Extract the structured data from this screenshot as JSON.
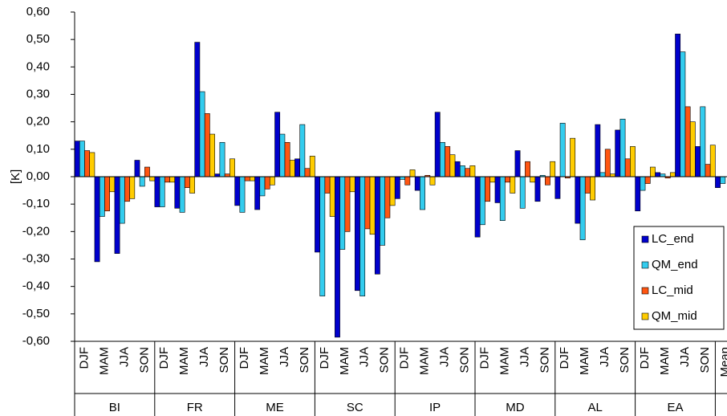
{
  "chart_data": {
    "type": "bar",
    "y_label": "[K]",
    "categories": [
      "DJF",
      "MAM",
      "JJA",
      "SON",
      "DJF",
      "MAM",
      "JJA",
      "SON",
      "DJF",
      "MAM",
      "JJA",
      "SON",
      "DJF",
      "MAM",
      "JJA",
      "SON",
      "DJF",
      "MAM",
      "JJA",
      "SON",
      "DJF",
      "MAM",
      "JJA",
      "SON",
      "DJF",
      "MAM",
      "JJA",
      "SON",
      "DJF",
      "MAM",
      "JJA",
      "SON",
      "Mean"
    ],
    "group_labels": [
      "BI",
      "FR",
      "ME",
      "SC",
      "IP",
      "MD",
      "AL",
      "EA"
    ],
    "series": [
      {
        "name": "LC_end",
        "color": "#0000cc",
        "values": [
          0.13,
          -0.31,
          -0.28,
          0.06,
          -0.11,
          -0.115,
          0.49,
          0.01,
          -0.105,
          -0.12,
          0.235,
          0.065,
          -0.275,
          -0.585,
          -0.415,
          -0.355,
          -0.08,
          -0.05,
          0.235,
          0.055,
          -0.22,
          -0.095,
          0.095,
          -0.09,
          -0.08,
          -0.17,
          0.19,
          0.17,
          -0.125,
          0.015,
          0.52,
          0.11,
          -0.04
        ]
      },
      {
        "name": "QM_end",
        "color": "#33ccee",
        "values": [
          0.13,
          -0.145,
          -0.17,
          -0.035,
          -0.11,
          -0.13,
          0.31,
          0.125,
          -0.13,
          -0.07,
          0.155,
          0.19,
          -0.435,
          -0.265,
          -0.435,
          -0.25,
          -0.01,
          -0.12,
          0.125,
          0.04,
          -0.175,
          -0.16,
          -0.115,
          0.005,
          0.195,
          -0.23,
          0.015,
          0.21,
          -0.05,
          0.01,
          0.455,
          0.255,
          -0.025
        ]
      },
      {
        "name": "LC_mid",
        "color": "#ff5511",
        "values": [
          0.095,
          -0.125,
          -0.09,
          0.035,
          -0.02,
          -0.04,
          0.23,
          0.01,
          -0.015,
          -0.045,
          0.125,
          0.03,
          -0.06,
          -0.2,
          -0.19,
          -0.15,
          -0.03,
          0.005,
          0.11,
          0.03,
          -0.09,
          -0.02,
          0.055,
          -0.03,
          -0.005,
          -0.06,
          0.1,
          0.065,
          -0.025,
          -0.005,
          0.255,
          0.045,
          null
        ]
      },
      {
        "name": "QM_mid",
        "color": "#ffcc00",
        "values": [
          0.088,
          -0.055,
          -0.08,
          -0.015,
          -0.02,
          -0.06,
          0.155,
          0.065,
          -0.015,
          -0.03,
          0.06,
          0.075,
          -0.145,
          -0.055,
          -0.21,
          -0.105,
          0.025,
          -0.03,
          0.08,
          0.04,
          -0.02,
          -0.06,
          -0.02,
          0.055,
          0.14,
          -0.085,
          0.01,
          0.11,
          0.035,
          0.015,
          0.2,
          0.115,
          null
        ]
      }
    ],
    "ylim": [
      -0.6,
      0.6
    ],
    "yticks": [
      {
        "value": 0.6,
        "label": "0,60"
      },
      {
        "value": 0.5,
        "label": "0,50"
      },
      {
        "value": 0.4,
        "label": "0,40"
      },
      {
        "value": 0.3,
        "label": "0,30"
      },
      {
        "value": 0.2,
        "label": "0,20"
      },
      {
        "value": 0.1,
        "label": "0,10"
      },
      {
        "value": 0,
        "label": "0,00"
      },
      {
        "value": -0.1,
        "label": "-0,10"
      },
      {
        "value": -0.2,
        "label": "-0,20"
      },
      {
        "value": -0.3,
        "label": "-0,30"
      },
      {
        "value": -0.4,
        "label": "-0,40"
      },
      {
        "value": -0.5,
        "label": "-0,50"
      },
      {
        "value": -0.6,
        "label": "-0,60"
      }
    ],
    "legend": "right"
  }
}
